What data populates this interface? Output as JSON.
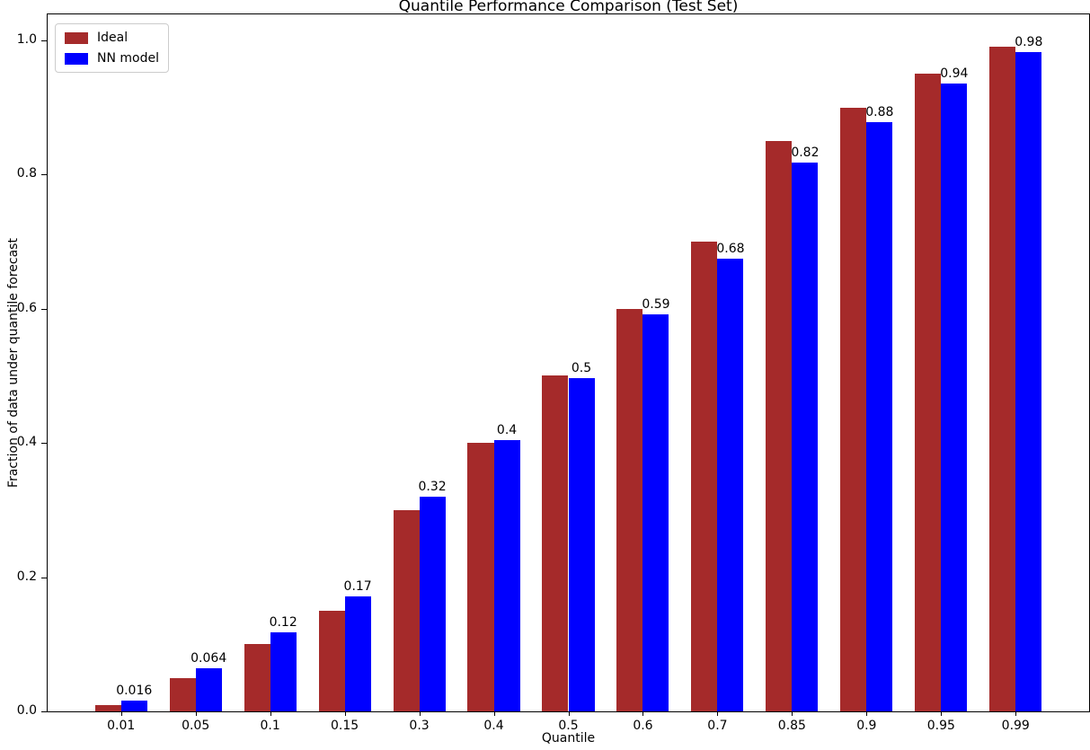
{
  "chart_data": {
    "type": "bar",
    "title": "Quantile Performance Comparison (Test Set)",
    "xlabel": "Quantile",
    "ylabel": "Fraction of data under quantile forecast",
    "categories": [
      "0.01",
      "0.05",
      "0.1",
      "0.15",
      "0.3",
      "0.4",
      "0.5",
      "0.6",
      "0.7",
      "0.85",
      "0.9",
      "0.95",
      "0.99"
    ],
    "series": [
      {
        "name": "Ideal",
        "color": "#a52a2a",
        "values": [
          0.01,
          0.05,
          0.1,
          0.15,
          0.3,
          0.4,
          0.5,
          0.6,
          0.7,
          0.85,
          0.9,
          0.95,
          0.99
        ]
      },
      {
        "name": "NN model",
        "color": "#0000ff",
        "values": [
          0.016,
          0.064,
          0.118,
          0.171,
          0.32,
          0.404,
          0.496,
          0.591,
          0.675,
          0.818,
          0.878,
          0.935,
          0.983
        ],
        "labels": [
          "0.016",
          "0.064",
          "0.12",
          "0.17",
          "0.32",
          "0.4",
          "0.5",
          "0.59",
          "0.68",
          "0.82",
          "0.88",
          "0.94",
          "0.98"
        ]
      }
    ],
    "yticks": [
      "0.0",
      "0.2",
      "0.4",
      "0.6",
      "0.8",
      "1.0"
    ],
    "ylim": [
      0,
      1.0387
    ],
    "xlim": [
      -0.985,
      12.985
    ],
    "bar_width": 0.35,
    "grid": false,
    "legend_position": "upper left"
  }
}
